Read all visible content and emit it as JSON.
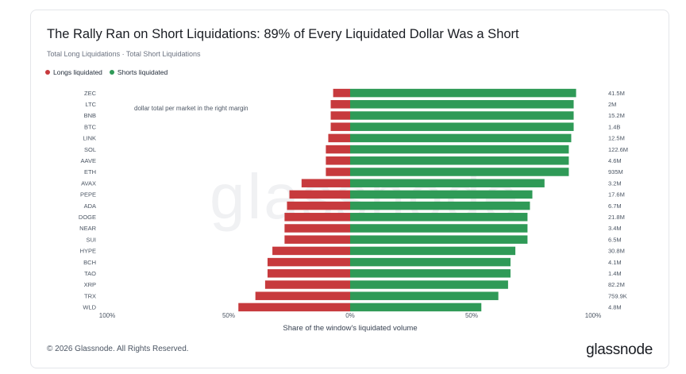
{
  "chart_data": {
    "type": "bar",
    "orientation": "horizontal-diverging",
    "title": "The Rally Ran on Short Liquidations: 89% of Every Liquidated Dollar Was a Short",
    "subtitle": "Total Long Liquidations · Total Short Liquidations",
    "annotation": "dollar total per market in the right margin",
    "xlabel": "Share of the window's liquidated volume",
    "x_ticks": [
      "100%",
      "50%",
      "0%",
      "50%",
      "100%"
    ],
    "xlim": [
      -100,
      100
    ],
    "legend_position": "top-left",
    "categories": [
      "ZEC",
      "LTC",
      "BNB",
      "BTC",
      "LINK",
      "SOL",
      "AAVE",
      "ETH",
      "AVAX",
      "PEPE",
      "ADA",
      "DOGE",
      "NEAR",
      "SUI",
      "HYPE",
      "BCH",
      "TAO",
      "XRP",
      "TRX",
      "WLD"
    ],
    "series": [
      {
        "name": "Longs liquidated",
        "color": "#c73a3d",
        "values": [
          -7,
          -8,
          -8,
          -8,
          -9,
          -10,
          -10,
          -10,
          -20,
          -25,
          -26,
          -27,
          -27,
          -27,
          -32,
          -34,
          -34,
          -35,
          -39,
          -46
        ]
      },
      {
        "name": "Shorts liquidated",
        "color": "#2f9a57",
        "values": [
          93,
          92,
          92,
          92,
          91,
          90,
          90,
          90,
          80,
          75,
          74,
          73,
          73,
          73,
          68,
          66,
          66,
          65,
          61,
          54
        ]
      }
    ],
    "totals": [
      "41.5M",
      "2M",
      "15.2M",
      "1.4B",
      "12.5M",
      "122.6M",
      "4.6M",
      "935M",
      "3.2M",
      "17.6M",
      "6.7M",
      "21.8M",
      "3.4M",
      "6.5M",
      "30.8M",
      "4.1M",
      "1.4M",
      "82.2M",
      "759.9K",
      "4.8M"
    ],
    "watermark": "glassnode"
  },
  "footer": {
    "copyright": "© 2026 Glassnode. All Rights Reserved.",
    "brand": "glassnode"
  }
}
